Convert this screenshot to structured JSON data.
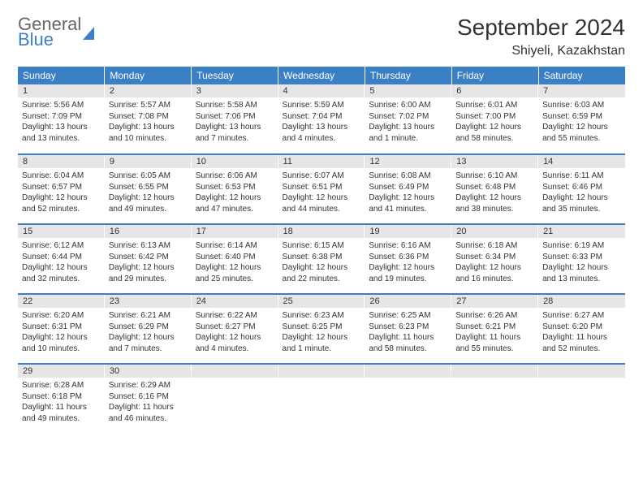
{
  "logo": {
    "word1": "General",
    "word2": "Blue"
  },
  "title": "September 2024",
  "location": "Shiyeli, Kazakhstan",
  "colors": {
    "header_bg": "#3b7fc4",
    "header_text": "#ffffff",
    "daynum_bg": "#e6e6e6",
    "border": "#3b7fc4"
  },
  "weekdays": [
    "Sunday",
    "Monday",
    "Tuesday",
    "Wednesday",
    "Thursday",
    "Friday",
    "Saturday"
  ],
  "weeks": [
    [
      {
        "n": "1",
        "sr": "Sunrise: 5:56 AM",
        "ss": "Sunset: 7:09 PM",
        "dl": "Daylight: 13 hours and 13 minutes."
      },
      {
        "n": "2",
        "sr": "Sunrise: 5:57 AM",
        "ss": "Sunset: 7:08 PM",
        "dl": "Daylight: 13 hours and 10 minutes."
      },
      {
        "n": "3",
        "sr": "Sunrise: 5:58 AM",
        "ss": "Sunset: 7:06 PM",
        "dl": "Daylight: 13 hours and 7 minutes."
      },
      {
        "n": "4",
        "sr": "Sunrise: 5:59 AM",
        "ss": "Sunset: 7:04 PM",
        "dl": "Daylight: 13 hours and 4 minutes."
      },
      {
        "n": "5",
        "sr": "Sunrise: 6:00 AM",
        "ss": "Sunset: 7:02 PM",
        "dl": "Daylight: 13 hours and 1 minute."
      },
      {
        "n": "6",
        "sr": "Sunrise: 6:01 AM",
        "ss": "Sunset: 7:00 PM",
        "dl": "Daylight: 12 hours and 58 minutes."
      },
      {
        "n": "7",
        "sr": "Sunrise: 6:03 AM",
        "ss": "Sunset: 6:59 PM",
        "dl": "Daylight: 12 hours and 55 minutes."
      }
    ],
    [
      {
        "n": "8",
        "sr": "Sunrise: 6:04 AM",
        "ss": "Sunset: 6:57 PM",
        "dl": "Daylight: 12 hours and 52 minutes."
      },
      {
        "n": "9",
        "sr": "Sunrise: 6:05 AM",
        "ss": "Sunset: 6:55 PM",
        "dl": "Daylight: 12 hours and 49 minutes."
      },
      {
        "n": "10",
        "sr": "Sunrise: 6:06 AM",
        "ss": "Sunset: 6:53 PM",
        "dl": "Daylight: 12 hours and 47 minutes."
      },
      {
        "n": "11",
        "sr": "Sunrise: 6:07 AM",
        "ss": "Sunset: 6:51 PM",
        "dl": "Daylight: 12 hours and 44 minutes."
      },
      {
        "n": "12",
        "sr": "Sunrise: 6:08 AM",
        "ss": "Sunset: 6:49 PM",
        "dl": "Daylight: 12 hours and 41 minutes."
      },
      {
        "n": "13",
        "sr": "Sunrise: 6:10 AM",
        "ss": "Sunset: 6:48 PM",
        "dl": "Daylight: 12 hours and 38 minutes."
      },
      {
        "n": "14",
        "sr": "Sunrise: 6:11 AM",
        "ss": "Sunset: 6:46 PM",
        "dl": "Daylight: 12 hours and 35 minutes."
      }
    ],
    [
      {
        "n": "15",
        "sr": "Sunrise: 6:12 AM",
        "ss": "Sunset: 6:44 PM",
        "dl": "Daylight: 12 hours and 32 minutes."
      },
      {
        "n": "16",
        "sr": "Sunrise: 6:13 AM",
        "ss": "Sunset: 6:42 PM",
        "dl": "Daylight: 12 hours and 29 minutes."
      },
      {
        "n": "17",
        "sr": "Sunrise: 6:14 AM",
        "ss": "Sunset: 6:40 PM",
        "dl": "Daylight: 12 hours and 25 minutes."
      },
      {
        "n": "18",
        "sr": "Sunrise: 6:15 AM",
        "ss": "Sunset: 6:38 PM",
        "dl": "Daylight: 12 hours and 22 minutes."
      },
      {
        "n": "19",
        "sr": "Sunrise: 6:16 AM",
        "ss": "Sunset: 6:36 PM",
        "dl": "Daylight: 12 hours and 19 minutes."
      },
      {
        "n": "20",
        "sr": "Sunrise: 6:18 AM",
        "ss": "Sunset: 6:34 PM",
        "dl": "Daylight: 12 hours and 16 minutes."
      },
      {
        "n": "21",
        "sr": "Sunrise: 6:19 AM",
        "ss": "Sunset: 6:33 PM",
        "dl": "Daylight: 12 hours and 13 minutes."
      }
    ],
    [
      {
        "n": "22",
        "sr": "Sunrise: 6:20 AM",
        "ss": "Sunset: 6:31 PM",
        "dl": "Daylight: 12 hours and 10 minutes."
      },
      {
        "n": "23",
        "sr": "Sunrise: 6:21 AM",
        "ss": "Sunset: 6:29 PM",
        "dl": "Daylight: 12 hours and 7 minutes."
      },
      {
        "n": "24",
        "sr": "Sunrise: 6:22 AM",
        "ss": "Sunset: 6:27 PM",
        "dl": "Daylight: 12 hours and 4 minutes."
      },
      {
        "n": "25",
        "sr": "Sunrise: 6:23 AM",
        "ss": "Sunset: 6:25 PM",
        "dl": "Daylight: 12 hours and 1 minute."
      },
      {
        "n": "26",
        "sr": "Sunrise: 6:25 AM",
        "ss": "Sunset: 6:23 PM",
        "dl": "Daylight: 11 hours and 58 minutes."
      },
      {
        "n": "27",
        "sr": "Sunrise: 6:26 AM",
        "ss": "Sunset: 6:21 PM",
        "dl": "Daylight: 11 hours and 55 minutes."
      },
      {
        "n": "28",
        "sr": "Sunrise: 6:27 AM",
        "ss": "Sunset: 6:20 PM",
        "dl": "Daylight: 11 hours and 52 minutes."
      }
    ],
    [
      {
        "n": "29",
        "sr": "Sunrise: 6:28 AM",
        "ss": "Sunset: 6:18 PM",
        "dl": "Daylight: 11 hours and 49 minutes."
      },
      {
        "n": "30",
        "sr": "Sunrise: 6:29 AM",
        "ss": "Sunset: 6:16 PM",
        "dl": "Daylight: 11 hours and 46 minutes."
      },
      null,
      null,
      null,
      null,
      null
    ]
  ]
}
